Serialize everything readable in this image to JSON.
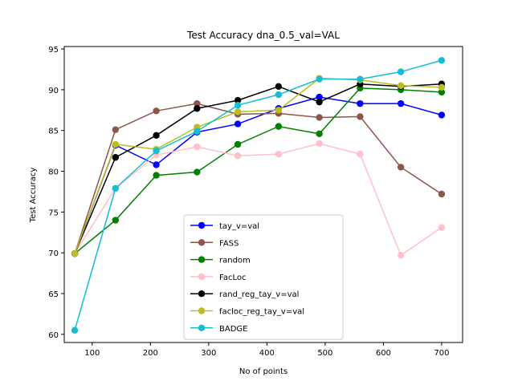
{
  "chart_data": {
    "type": "line",
    "title": "Test Accuracy dna_0.5_val=VAL",
    "xlabel": "No of points",
    "ylabel": "Test Accuracy",
    "xlim": [
      52,
      736
    ],
    "ylim": [
      59,
      95.3
    ],
    "xticks": [
      100,
      200,
      300,
      400,
      500,
      600,
      700
    ],
    "yticks": [
      60,
      65,
      70,
      75,
      80,
      85,
      90,
      95
    ],
    "grid": false,
    "legend_position": "lower center",
    "x": [
      70,
      140,
      210,
      280,
      350,
      420,
      490,
      560,
      630,
      700
    ],
    "series": [
      {
        "name": "tay_v=val",
        "color": "#0000ff",
        "values": [
          69.9,
          83.2,
          80.8,
          84.8,
          85.8,
          87.7,
          89.1,
          88.3,
          88.3,
          86.9
        ]
      },
      {
        "name": "FASS",
        "color": "#8c564b",
        "values": [
          69.9,
          85.1,
          87.4,
          88.3,
          87.0,
          87.1,
          86.6,
          86.7,
          80.5,
          77.2
        ]
      },
      {
        "name": "random",
        "color": "#008000",
        "values": [
          69.9,
          74.0,
          79.5,
          79.9,
          83.3,
          85.5,
          84.6,
          90.2,
          90.0,
          89.7
        ]
      },
      {
        "name": "FacLoc",
        "color": "#ffc0cb",
        "values": [
          69.9,
          77.9,
          82.0,
          83.0,
          81.9,
          82.1,
          83.4,
          82.1,
          69.7,
          73.1
        ]
      },
      {
        "name": "rand_reg_tay_v=val",
        "color": "#000000",
        "values": [
          69.9,
          81.7,
          84.4,
          87.7,
          88.7,
          90.4,
          88.5,
          90.7,
          90.4,
          90.7
        ]
      },
      {
        "name": "facloc_reg_tay_v=val",
        "color": "#bcbd22",
        "values": [
          69.9,
          83.3,
          82.7,
          85.4,
          87.3,
          87.5,
          91.4,
          91.2,
          90.5,
          90.3
        ]
      },
      {
        "name": "BADGE",
        "color": "#17becf",
        "values": [
          60.5,
          77.9,
          82.5,
          84.9,
          88.1,
          89.4,
          91.3,
          91.3,
          92.2,
          93.6
        ]
      }
    ]
  }
}
